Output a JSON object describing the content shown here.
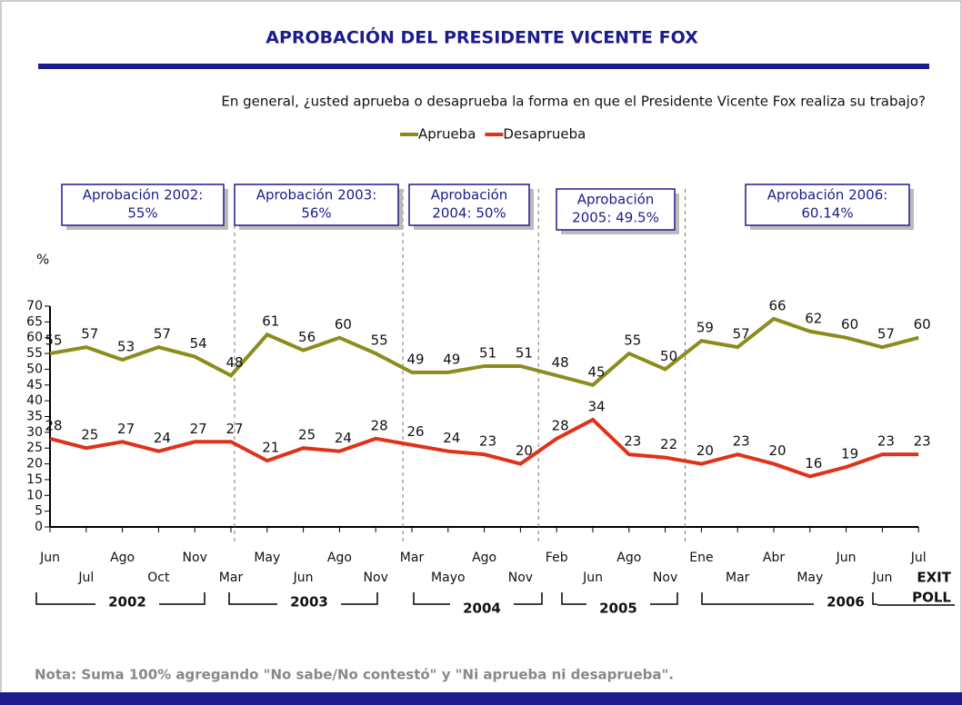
{
  "chart_data": {
    "type": "line",
    "title": "APROBACIÓN DEL PRESIDENTE VICENTE FOX",
    "subtitle": "En general, ¿usted aprueba o desaprueba la forma en que el Presidente Vicente Fox  realiza su trabajo?",
    "y_label": "%",
    "categories": [
      "Jun",
      "Jul",
      "Ago",
      "Oct",
      "Nov",
      "Mar",
      "May",
      "Jun",
      "Ago",
      "Nov",
      "Mar",
      "Mayo",
      "Ago",
      "Nov",
      "Feb",
      "Jun",
      "Ago",
      "Nov",
      "Ene",
      "Mar",
      "Abr",
      "May",
      "Jun",
      "Jun",
      "Jul"
    ],
    "series": [
      {
        "name": "Aprueba",
        "color": "#8c8c1e",
        "values": [
          55,
          57,
          53,
          57,
          54,
          48,
          61,
          56,
          60,
          55,
          49,
          49,
          51,
          51,
          48,
          45,
          55,
          50,
          59,
          57,
          66,
          62,
          60,
          57,
          60
        ]
      },
      {
        "name": "Desaprueba",
        "color": "#e0321a",
        "values": [
          28,
          25,
          27,
          24,
          27,
          27,
          21,
          25,
          24,
          28,
          26,
          24,
          23,
          20,
          28,
          34,
          23,
          22,
          20,
          23,
          20,
          16,
          19,
          23,
          23
        ]
      }
    ],
    "ylim": [
      0,
      70
    ],
    "yticks": [
      0,
      5,
      10,
      15,
      20,
      25,
      30,
      35,
      40,
      45,
      50,
      55,
      60,
      65,
      70
    ],
    "years": [
      "2002",
      "2003",
      "2004",
      "2005",
      "2006"
    ],
    "exit_poll": [
      "EXIT",
      "POLL"
    ],
    "annotations": [
      [
        "Aprobación 2002:",
        "55%"
      ],
      [
        "Aprobación 2003:",
        "56%"
      ],
      [
        "Aprobación",
        "2004: 50%"
      ],
      [
        "Aprobación",
        "2005: 49.5%"
      ],
      [
        "Aprobación 2006:",
        "60.14%"
      ]
    ],
    "note": "Nota: Suma 100% agregando  \"No sabe/No contestó\" y \"Ni aprueba ni desaprueba\"."
  }
}
